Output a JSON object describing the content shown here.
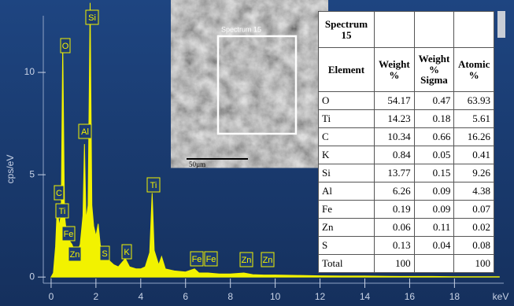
{
  "chart_data": {
    "type": "area",
    "y_label": "cps/eV",
    "x_label": "keV",
    "color": "#f2f200",
    "x": [
      0,
      0.1,
      0.2,
      0.28,
      0.35,
      0.45,
      0.52,
      0.6,
      0.7,
      0.8,
      0.93,
      1.0,
      1.1,
      1.2,
      1.3,
      1.42,
      1.49,
      1.56,
      1.65,
      1.74,
      1.82,
      1.9,
      2.0,
      2.1,
      2.2,
      2.31,
      2.4,
      2.6,
      2.8,
      3.0,
      3.31,
      3.5,
      3.8,
      4.0,
      4.2,
      4.4,
      4.51,
      4.6,
      4.8,
      4.93,
      5.1,
      5.5,
      6.0,
      6.4,
      6.6,
      7.0,
      7.5,
      8.0,
      8.6,
      9.0,
      9.5,
      10,
      11,
      12,
      13,
      14,
      15,
      16,
      17,
      18,
      19,
      20
    ],
    "values": [
      0,
      0.2,
      1.5,
      3.6,
      2.5,
      3.0,
      11.4,
      3.0,
      2.0,
      1.8,
      1.6,
      1.4,
      1.2,
      1.3,
      1.6,
      3.0,
      6.5,
      2.8,
      3.5,
      13.4,
      3.5,
      2.5,
      2.0,
      2.6,
      1.5,
      1.2,
      0.9,
      0.8,
      0.6,
      0.5,
      0.9,
      0.5,
      0.4,
      0.4,
      0.5,
      1.2,
      4.1,
      1.3,
      0.6,
      1.0,
      0.4,
      0.3,
      0.25,
      0.4,
      0.2,
      0.2,
      0.15,
      0.15,
      0.2,
      0.12,
      0.1,
      0.1,
      0.08,
      0.06,
      0.05,
      0.05,
      0.04,
      0.03,
      0.03,
      0.02,
      0.02,
      0.02
    ],
    "xlim": [
      -0.7,
      20.2
    ],
    "ylim": [
      -0.3,
      13.5
    ],
    "xticks": [
      0,
      2,
      4,
      6,
      8,
      10,
      12,
      14,
      16,
      18
    ],
    "yticks": [
      0,
      5,
      10
    ],
    "annotations": [
      "Si",
      "O",
      "Al",
      "C",
      "Ti",
      "Fe",
      "Zn",
      "S",
      "K",
      "Ti",
      "Fe",
      "Fe",
      "Zn",
      "Zn"
    ]
  },
  "image": {
    "label": "Spectrum 15",
    "scale": "50µm"
  },
  "table": {
    "title": "Spectrum 15",
    "headers": [
      "Element",
      "Weight %",
      "Weight % Sigma",
      "Atomic %"
    ],
    "rows": [
      [
        "O",
        54.17,
        0.47,
        63.93
      ],
      [
        "Ti",
        14.23,
        0.18,
        5.61
      ],
      [
        "C",
        10.34,
        0.66,
        16.26
      ],
      [
        "K",
        0.84,
        0.05,
        0.41
      ],
      [
        "Si",
        13.77,
        0.15,
        9.26
      ],
      [
        "Al",
        6.26,
        0.09,
        4.38
      ],
      [
        "Fe",
        0.19,
        0.09,
        0.07
      ],
      [
        "Zn",
        0.06,
        0.11,
        0.02
      ],
      [
        "S",
        0.13,
        0.04,
        0.08
      ],
      [
        "Total",
        100,
        null,
        100
      ]
    ]
  }
}
